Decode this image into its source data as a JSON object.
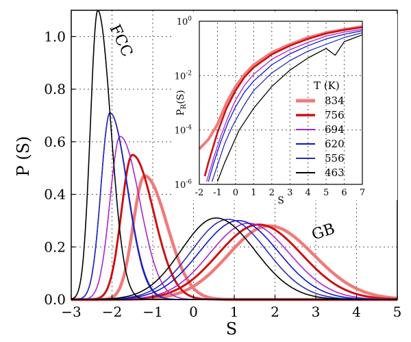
{
  "chart_data": [
    {
      "type": "line",
      "xlabel": "S",
      "ylabel": "P (S)",
      "xlim": [
        -3,
        5
      ],
      "ylim": [
        0,
        1.1
      ],
      "xticks": [
        "−3",
        "−2",
        "−1",
        "0",
        "1",
        "2",
        "3",
        "4",
        "5"
      ],
      "yticks": [
        "0.0",
        "0.2",
        "0.4",
        "0.6",
        "0.8",
        "1.0"
      ],
      "grid": true,
      "annotations": [
        {
          "text": "FCC",
          "x": -2.0,
          "y": 0.96
        },
        {
          "text": "GB",
          "x": 3.25,
          "y": 0.3
        }
      ],
      "series": [
        {
          "name": "834",
          "color": "#f07a7a",
          "fcc": {
            "amp": 0.47,
            "mu": -1.2,
            "sl": 0.28,
            "sr": 0.55
          },
          "gb": {
            "amp": 0.28,
            "mu": 1.85,
            "sl": 1.0,
            "sr": 1.1
          }
        },
        {
          "name": "756",
          "color": "#cc1111",
          "fcc": {
            "amp": 0.55,
            "mu": -1.5,
            "sl": 0.27,
            "sr": 0.52
          },
          "gb": {
            "amp": 0.285,
            "mu": 1.6,
            "sl": 1.0,
            "sr": 1.05
          }
        },
        {
          "name": "694",
          "color": "#aa22cc",
          "fcc": {
            "amp": 0.62,
            "mu": -1.8,
            "sl": 0.25,
            "sr": 0.48
          },
          "gb": {
            "amp": 0.29,
            "mu": 1.35,
            "sl": 0.95,
            "sr": 1.0
          }
        },
        {
          "name": "620",
          "color": "#1111cc",
          "fcc": {
            "amp": 0.71,
            "mu": -2.05,
            "sl": 0.22,
            "sr": 0.43
          },
          "gb": {
            "amp": 0.3,
            "mu": 1.1,
            "sl": 0.95,
            "sr": 0.98
          }
        },
        {
          "name": "556",
          "color": "#2a2ab8",
          "fcc": {
            "amp": 0.71,
            "mu": -2.05,
            "sl": 0.22,
            "sr": 0.42
          },
          "gb": {
            "amp": 0.305,
            "mu": 0.85,
            "sl": 0.9,
            "sr": 0.95
          }
        },
        {
          "name": "463",
          "color": "#000000",
          "fcc": {
            "amp": 1.1,
            "mu": -2.35,
            "sl": 0.18,
            "sr": 0.32
          },
          "gb": {
            "amp": 0.31,
            "mu": 0.55,
            "sl": 0.85,
            "sr": 0.95
          }
        }
      ]
    },
    {
      "type": "line",
      "inset": true,
      "xlabel": "S",
      "ylabel": "P_R(S)",
      "xlim": [
        -2,
        7
      ],
      "ylim_log10": [
        -6,
        0
      ],
      "yscale": "log",
      "xticks": [
        "-2",
        "-1",
        "0",
        "1",
        "2",
        "3",
        "4",
        "5",
        "6",
        "7"
      ],
      "yticks": [
        {
          "base": "10",
          "exp": "0"
        },
        {
          "base": "10",
          "exp": "-2"
        },
        {
          "base": "10",
          "exp": "-4"
        },
        {
          "base": "10",
          "exp": "-6"
        }
      ],
      "grid": true,
      "legend": {
        "title": "T (K)",
        "placement": "right"
      },
      "series": [
        {
          "name": "834",
          "color": "#f07a7a",
          "x": [
            -2,
            -1.5,
            -1,
            -0.5,
            0,
            0.5,
            1,
            2,
            3,
            4,
            5,
            6,
            7
          ],
          "log_y": [
            -4.7,
            -4.35,
            -3.8,
            -3.0,
            -2.4,
            -1.95,
            -1.6,
            -1.15,
            -0.85,
            -0.6,
            -0.42,
            -0.3,
            -0.2
          ]
        },
        {
          "name": "756",
          "color": "#cc1111",
          "x": [
            -1.7,
            -1.5,
            -1,
            -0.5,
            0,
            0.5,
            1,
            2,
            3,
            4,
            5,
            6,
            7
          ],
          "log_y": [
            -5.7,
            -5.2,
            -4.1,
            -3.2,
            -2.55,
            -2.05,
            -1.7,
            -1.22,
            -0.9,
            -0.65,
            -0.45,
            -0.32,
            -0.22
          ]
        },
        {
          "name": "694",
          "color": "#aa22cc",
          "x": [
            -1.6,
            -1.2,
            -0.8,
            -0.4,
            0,
            0.5,
            1,
            2,
            3,
            4,
            5,
            6,
            7
          ],
          "log_y": [
            -5.9,
            -5.0,
            -4.2,
            -3.5,
            -2.9,
            -2.35,
            -1.95,
            -1.4,
            -1.05,
            -0.78,
            -0.55,
            -0.4,
            -0.3
          ]
        },
        {
          "name": "620",
          "color": "#1111cc",
          "x": [
            -1.5,
            -1.2,
            -0.8,
            -0.4,
            0,
            0.5,
            1,
            2,
            3,
            4,
            5,
            6,
            7
          ],
          "log_y": [
            -5.9,
            -5.2,
            -4.4,
            -3.7,
            -3.15,
            -2.6,
            -2.2,
            -1.6,
            -1.2,
            -0.9,
            -0.65,
            -0.48,
            -0.35
          ]
        },
        {
          "name": "556",
          "color": "#2a2ab8",
          "x": [
            -1.3,
            -1.0,
            -0.6,
            -0.2,
            0.2,
            0.6,
            1,
            2,
            3,
            4,
            5,
            6,
            7
          ],
          "log_y": [
            -5.9,
            -5.3,
            -4.5,
            -3.9,
            -3.4,
            -2.95,
            -2.55,
            -1.9,
            -1.45,
            -1.1,
            -0.85,
            -0.6,
            -0.42
          ]
        },
        {
          "name": "463",
          "color": "#000000",
          "x": [
            -1.0,
            -0.6,
            -0.2,
            0.2,
            0.6,
            1,
            1.5,
            2,
            3,
            4,
            5,
            5.5,
            6,
            7
          ],
          "log_y": [
            -5.9,
            -5.2,
            -4.6,
            -4.0,
            -3.6,
            -3.2,
            -2.8,
            -2.4,
            -1.8,
            -1.35,
            -1.0,
            -1.25,
            -0.75,
            -0.5
          ]
        }
      ]
    }
  ]
}
